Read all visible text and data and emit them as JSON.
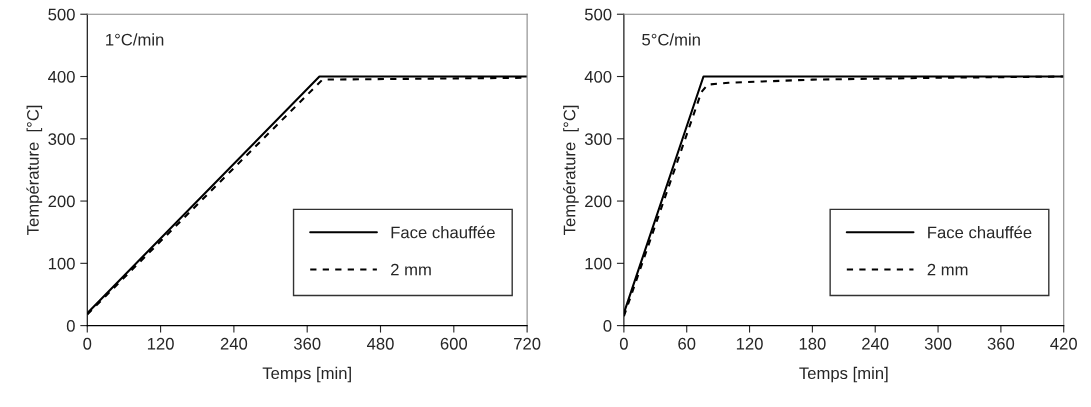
{
  "chart_data": [
    {
      "type": "line",
      "xlabel": "Temps [min]",
      "ylabel": "Température  [°C]",
      "annotations": [
        "1°C/min"
      ],
      "xlim": [
        0,
        720
      ],
      "xticks": [
        0,
        120,
        240,
        360,
        480,
        600,
        720
      ],
      "ylim": [
        0,
        500
      ],
      "yticks": [
        0,
        100,
        200,
        300,
        400,
        500
      ],
      "grid": false,
      "legend": "bottom right",
      "series": [
        {
          "name": "Face chauffée",
          "color": "#000000",
          "line_style": "solid",
          "x": [
            0,
            380,
            720
          ],
          "values": [
            20,
            400,
            400
          ]
        },
        {
          "name": "2 mm",
          "color": "#000000",
          "line_style": "dashed",
          "x": [
            0,
            385,
            720
          ],
          "values": [
            18,
            395,
            398
          ]
        }
      ]
    },
    {
      "type": "line",
      "xlabel": "Temps [min]",
      "ylabel": "Température  [°C]",
      "annotations": [
        "5°C/min"
      ],
      "xlim": [
        0,
        420
      ],
      "xticks": [
        0,
        60,
        120,
        180,
        240,
        300,
        360,
        420
      ],
      "ylim": [
        0,
        500
      ],
      "yticks": [
        0,
        100,
        200,
        300,
        400,
        500
      ],
      "grid": false,
      "legend": "bottom right",
      "series": [
        {
          "name": "Face chauffée",
          "color": "#000000",
          "line_style": "solid",
          "x": [
            0,
            76,
            420
          ],
          "values": [
            20,
            400,
            400
          ]
        },
        {
          "name": "2 mm",
          "color": "#000000",
          "line_style": "dashed",
          "x": [
            0,
            74,
            80,
            100,
            180,
            300,
            420
          ],
          "values": [
            15,
            375,
            387,
            390,
            395,
            398,
            400
          ]
        }
      ]
    }
  ]
}
